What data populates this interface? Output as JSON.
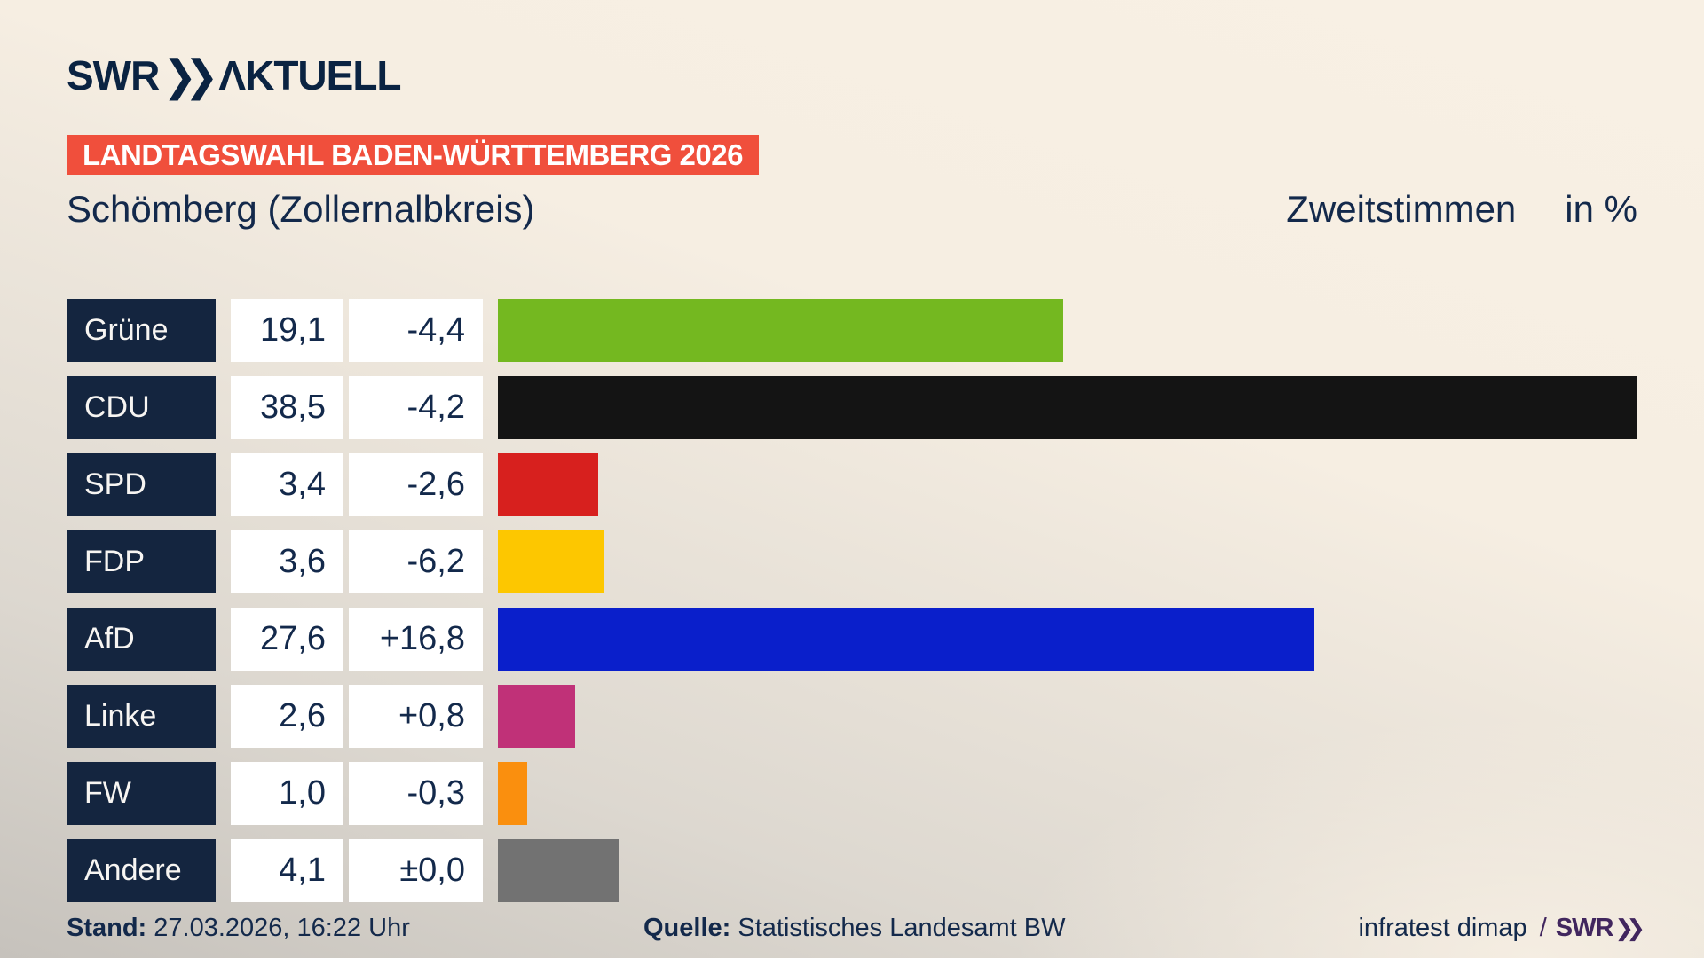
{
  "header": {
    "logo_swr": "SWR",
    "logo_chevrons": "❯❯",
    "logo_aktuell": "ΛKTUELL",
    "banner": "LANDTAGSWAHL BADEN-WÜRTTEMBERG 2026",
    "title": "Schömberg (Zollernalbkreis)",
    "measure_label": "Zweitstimmen",
    "unit_label": "in %"
  },
  "chart_data": {
    "type": "bar",
    "orientation": "horizontal",
    "title": "Schömberg (Zollernalbkreis)",
    "measure": "Zweitstimmen",
    "unit": "%",
    "xlim": [
      0,
      38.5
    ],
    "grid": false,
    "legend": false,
    "categories": [
      "Grüne",
      "CDU",
      "SPD",
      "FDP",
      "AfD",
      "Linke",
      "FW",
      "Andere"
    ],
    "values": [
      19.1,
      38.5,
      3.4,
      3.6,
      27.6,
      2.6,
      1.0,
      4.1
    ],
    "value_labels": [
      "19,1",
      "38,5",
      "3,4",
      "3,6",
      "27,6",
      "2,6",
      "1,0",
      "4,1"
    ],
    "change_labels": [
      "-4,4",
      "-4,2",
      "-2,6",
      "-6,2",
      "+16,8",
      "+0,8",
      "-0,3",
      "±0,0"
    ],
    "bar_colors": [
      "#74b820",
      "#141414",
      "#d7201e",
      "#fdc700",
      "#0a1fcb",
      "#c03178",
      "#fa8f0e",
      "#727272"
    ]
  },
  "footer": {
    "stand_label": "Stand:",
    "stand_value": " 27.03.2026, 16:22 Uhr",
    "quelle_label": "Quelle:",
    "quelle_value": " Statistisches Landesamt BW",
    "credit_text": "infratest dimap",
    "credit_separator": "/",
    "credit_brand_swr": "SWR",
    "credit_brand_chevrons": "❯❯"
  },
  "colors": {
    "accent_red": "#f04f3c",
    "text_navy": "#13294b",
    "label_box_navy": "#14253f",
    "logo_navy": "#0a2342",
    "brand_purple": "#41265e",
    "background_top": "#f8f0e4",
    "background_bottom": "#c6c2bc",
    "cell_white": "#ffffff"
  }
}
